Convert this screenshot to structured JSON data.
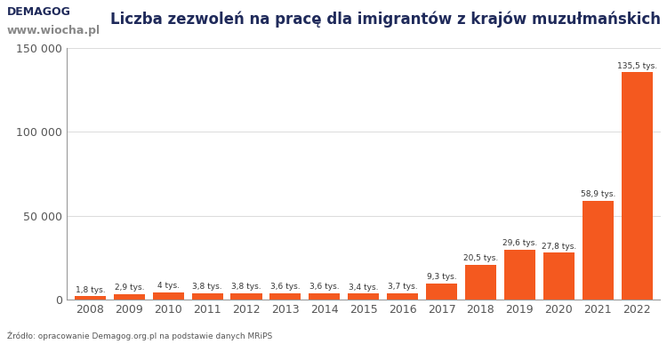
{
  "chart_data": {
    "type": "bar",
    "title": "Liczba zezwoleń na pracę dla imigrantów z krajów muzułmańskich",
    "logo": "DEMAGOG",
    "watermark": "www.wiocha.pl",
    "source": "Źródło: opracowanie Demagog.org.pl na podstawie danych MRiPS",
    "categories": [
      "2008",
      "2009",
      "2010",
      "2011",
      "2012",
      "2013",
      "2014",
      "2015",
      "2016",
      "2017",
      "2018",
      "2019",
      "2020",
      "2021",
      "2022"
    ],
    "values": [
      1800,
      2900,
      4000,
      3800,
      3800,
      3600,
      3600,
      3400,
      3700,
      9300,
      20500,
      29600,
      27800,
      58900,
      135500
    ],
    "value_labels": [
      "1,8 tys.",
      "2,9 tys.",
      "4 tys.",
      "3,8 tys.",
      "3,8 tys.",
      "3,6 tys.",
      "3,6 tys.",
      "3,4 tys.",
      "3,7 tys.",
      "9,3 tys.",
      "20,5 tys.",
      "29,6 tys.",
      "27,8 tys.",
      "58,9 tys.",
      "135,5 tys."
    ],
    "data_labels": true,
    "color": "#f4591f",
    "ylim": [
      0,
      150000
    ],
    "yticks": [
      0,
      {
        "value": 50000,
        "label": "50 000"
      },
      {
        "value": 100000,
        "label": "100 000"
      },
      {
        "value": 150000,
        "label": "150 000"
      }
    ],
    "grid": true
  }
}
